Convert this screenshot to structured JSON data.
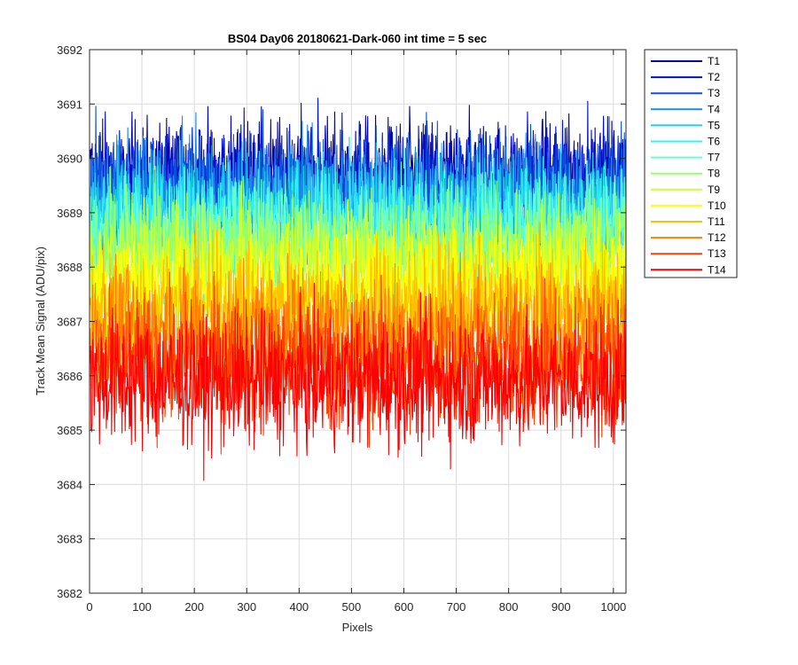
{
  "chart_data": {
    "type": "line",
    "title": "BS04 Day06 20180621-Dark-060 int time = 5 sec",
    "xlabel": "Pixels",
    "ylabel": "Track Mean Signal (ADU/pix)",
    "xlim": [
      0,
      1024
    ],
    "ylim": [
      3682,
      3692
    ],
    "xticks": [
      0,
      100,
      200,
      300,
      400,
      500,
      600,
      700,
      800,
      900,
      1000
    ],
    "yticks": [
      3682,
      3683,
      3684,
      3685,
      3686,
      3687,
      3688,
      3689,
      3690,
      3691,
      3692
    ],
    "grid": true,
    "legend_position": "outside-top-right",
    "n_pixels": 1024,
    "series": [
      {
        "name": "T1",
        "color": "#0000b0",
        "mean": 3689.6,
        "spread": 1.0
      },
      {
        "name": "T2",
        "color": "#0012c8",
        "mean": 3689.5,
        "spread": 1.0
      },
      {
        "name": "T3",
        "color": "#0a4fe0",
        "mean": 3689.4,
        "spread": 1.0
      },
      {
        "name": "T4",
        "color": "#1a8ce8",
        "mean": 3689.2,
        "spread": 1.0
      },
      {
        "name": "T5",
        "color": "#22ccee",
        "mean": 3689.0,
        "spread": 1.0
      },
      {
        "name": "T6",
        "color": "#33f0f0",
        "mean": 3688.8,
        "spread": 1.0
      },
      {
        "name": "T7",
        "color": "#66ffcc",
        "mean": 3688.6,
        "spread": 1.0
      },
      {
        "name": "T8",
        "color": "#99ff66",
        "mean": 3688.3,
        "spread": 1.0
      },
      {
        "name": "T9",
        "color": "#ccff33",
        "mean": 3688.0,
        "spread": 1.0
      },
      {
        "name": "T10",
        "color": "#ffff00",
        "mean": 3687.6,
        "spread": 1.1
      },
      {
        "name": "T11",
        "color": "#ffbf00",
        "mean": 3687.2,
        "spread": 1.1
      },
      {
        "name": "T12",
        "color": "#ff8000",
        "mean": 3686.8,
        "spread": 1.1
      },
      {
        "name": "T13",
        "color": "#ff4000",
        "mean": 3686.2,
        "spread": 1.1
      },
      {
        "name": "T14",
        "color": "#ff0000",
        "mean": 3685.9,
        "spread": 1.1
      }
    ]
  }
}
